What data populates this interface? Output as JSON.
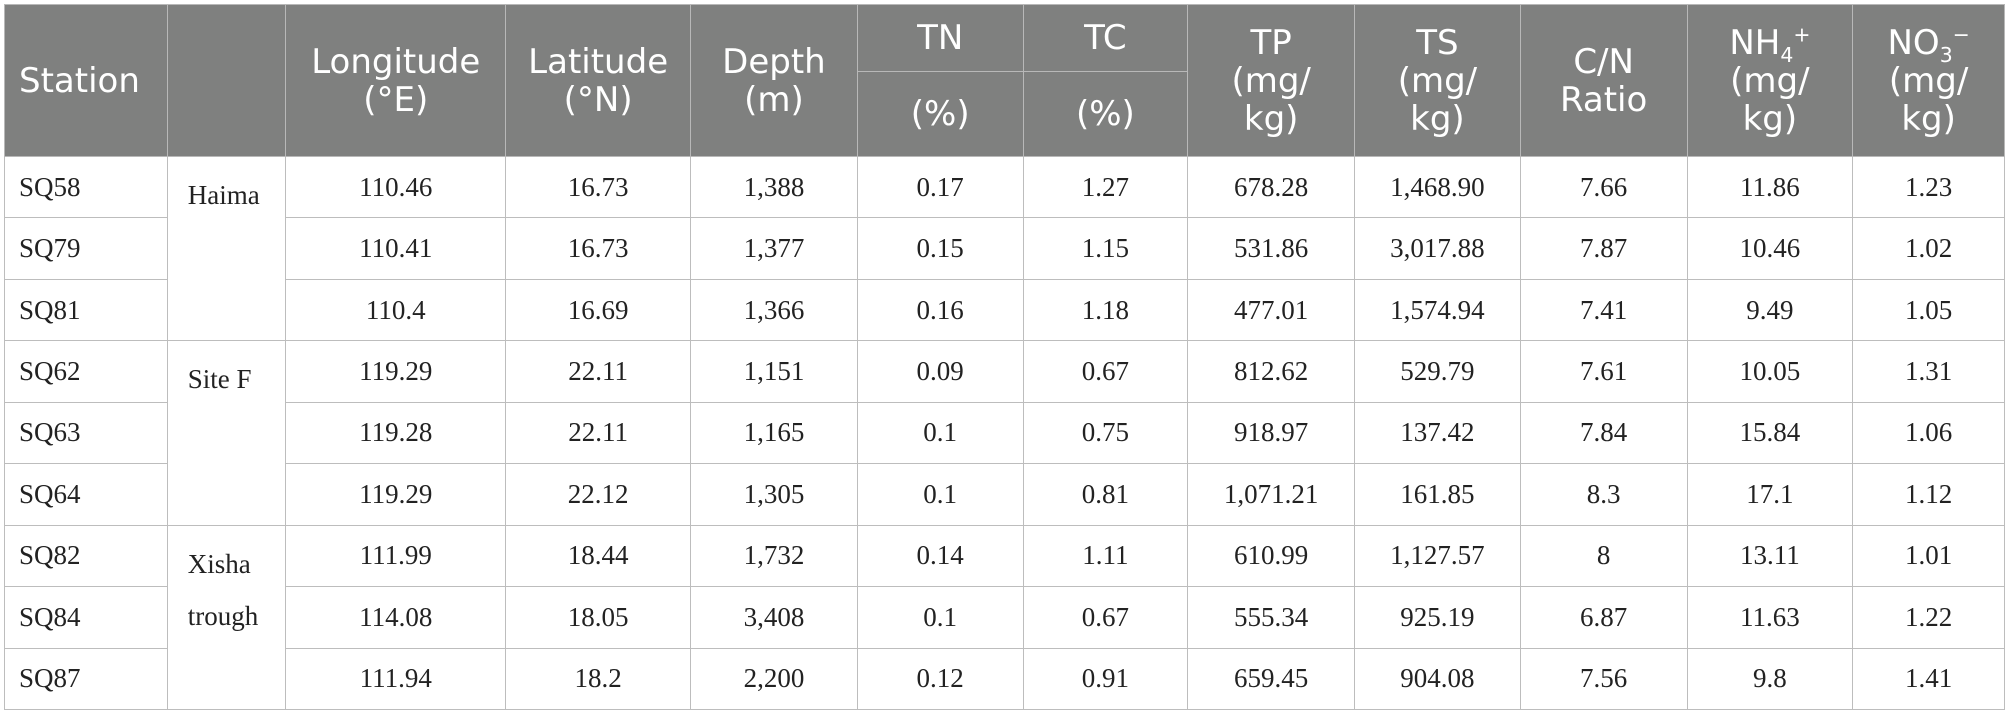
{
  "header": {
    "station": "Station",
    "longitude": [
      "Longitude",
      "(°E)"
    ],
    "latitude": [
      "Latitude",
      "(°N)"
    ],
    "depth": [
      "Depth",
      "(m)"
    ],
    "tn": [
      "TN",
      "(%)"
    ],
    "tc": [
      "TC",
      "(%)"
    ],
    "tp": [
      "TP",
      "(mg/",
      "kg)"
    ],
    "ts": [
      "TS",
      "(mg/",
      "kg)"
    ],
    "cn": [
      "C/N",
      "Ratio"
    ],
    "nh4": {
      "base": "NH",
      "sub": "4",
      "sup": "+",
      "unit": [
        "(mg/",
        "kg)"
      ]
    },
    "no3": {
      "base": "NO",
      "sub": "3",
      "sup": "−",
      "unit": [
        "(mg/",
        "kg)"
      ]
    }
  },
  "groups": [
    {
      "name": [
        "Haima"
      ]
    },
    {
      "name": [
        "Site F"
      ]
    },
    {
      "name": [
        "Xisha",
        "trough"
      ]
    }
  ],
  "rows": [
    {
      "station": "SQ58",
      "lon": "110.46",
      "lat": "16.73",
      "depth": "1,388",
      "tn": "0.17",
      "tc": "1.27",
      "tp": "678.28",
      "ts": "1,468.90",
      "cn": "7.66",
      "nh4": "11.86",
      "no3": "1.23"
    },
    {
      "station": "SQ79",
      "lon": "110.41",
      "lat": "16.73",
      "depth": "1,377",
      "tn": "0.15",
      "tc": "1.15",
      "tp": "531.86",
      "ts": "3,017.88",
      "cn": "7.87",
      "nh4": "10.46",
      "no3": "1.02"
    },
    {
      "station": "SQ81",
      "lon": "110.4",
      "lat": "16.69",
      "depth": "1,366",
      "tn": "0.16",
      "tc": "1.18",
      "tp": "477.01",
      "ts": "1,574.94",
      "cn": "7.41",
      "nh4": "9.49",
      "no3": "1.05"
    },
    {
      "station": "SQ62",
      "lon": "119.29",
      "lat": "22.11",
      "depth": "1,151",
      "tn": "0.09",
      "tc": "0.67",
      "tp": "812.62",
      "ts": "529.79",
      "cn": "7.61",
      "nh4": "10.05",
      "no3": "1.31"
    },
    {
      "station": "SQ63",
      "lon": "119.28",
      "lat": "22.11",
      "depth": "1,165",
      "tn": "0.1",
      "tc": "0.75",
      "tp": "918.97",
      "ts": "137.42",
      "cn": "7.84",
      "nh4": "15.84",
      "no3": "1.06"
    },
    {
      "station": "SQ64",
      "lon": "119.29",
      "lat": "22.12",
      "depth": "1,305",
      "tn": "0.1",
      "tc": "0.81",
      "tp": "1,071.21",
      "ts": "161.85",
      "cn": "8.3",
      "nh4": "17.1",
      "no3": "1.12"
    },
    {
      "station": "SQ82",
      "lon": "111.99",
      "lat": "18.44",
      "depth": "1,732",
      "tn": "0.14",
      "tc": "1.11",
      "tp": "610.99",
      "ts": "1,127.57",
      "cn": "8",
      "nh4": "13.11",
      "no3": "1.01"
    },
    {
      "station": "SQ84",
      "lon": "114.08",
      "lat": "18.05",
      "depth": "3,408",
      "tn": "0.1",
      "tc": "0.67",
      "tp": "555.34",
      "ts": "925.19",
      "cn": "6.87",
      "nh4": "11.63",
      "no3": "1.22"
    },
    {
      "station": "SQ87",
      "lon": "111.94",
      "lat": "18.2",
      "depth": "2,200",
      "tn": "0.12",
      "tc": "0.91",
      "tp": "659.45",
      "ts": "904.08",
      "cn": "7.56",
      "nh4": "9.8",
      "no3": "1.41"
    }
  ]
}
